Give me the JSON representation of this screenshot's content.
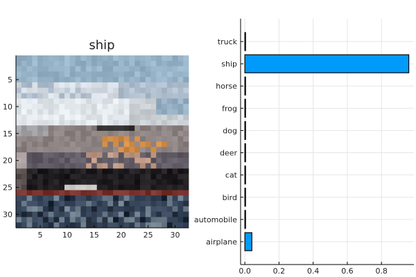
{
  "chart_data": [
    {
      "type": "heatmap",
      "title": "ship",
      "x_ticks": [
        5,
        10,
        15,
        20,
        25,
        30
      ],
      "y_ticks": [
        5,
        10,
        15,
        20,
        25,
        30
      ],
      "xlim": [
        0.5,
        32.5
      ],
      "ylim": [
        0.5,
        32.5
      ],
      "image_size": [
        32,
        32
      ]
    },
    {
      "type": "bar",
      "orientation": "horizontal",
      "categories": [
        "airplane",
        "automobile",
        "bird",
        "cat",
        "deer",
        "dog",
        "frog",
        "horse",
        "ship",
        "truck"
      ],
      "values": [
        0.041,
        0.002,
        0.002,
        0.002,
        0.002,
        0.002,
        0.002,
        0.002,
        0.96,
        0.004
      ],
      "xlim": [
        -0.025,
        0.99
      ],
      "x_ticks": [
        0.0,
        0.2,
        0.4,
        0.6,
        0.8
      ],
      "x_tick_labels": [
        "0.0",
        "0.2",
        "0.4",
        "0.6",
        "0.8"
      ],
      "bar_color": "#009AFA",
      "grid": true
    }
  ]
}
